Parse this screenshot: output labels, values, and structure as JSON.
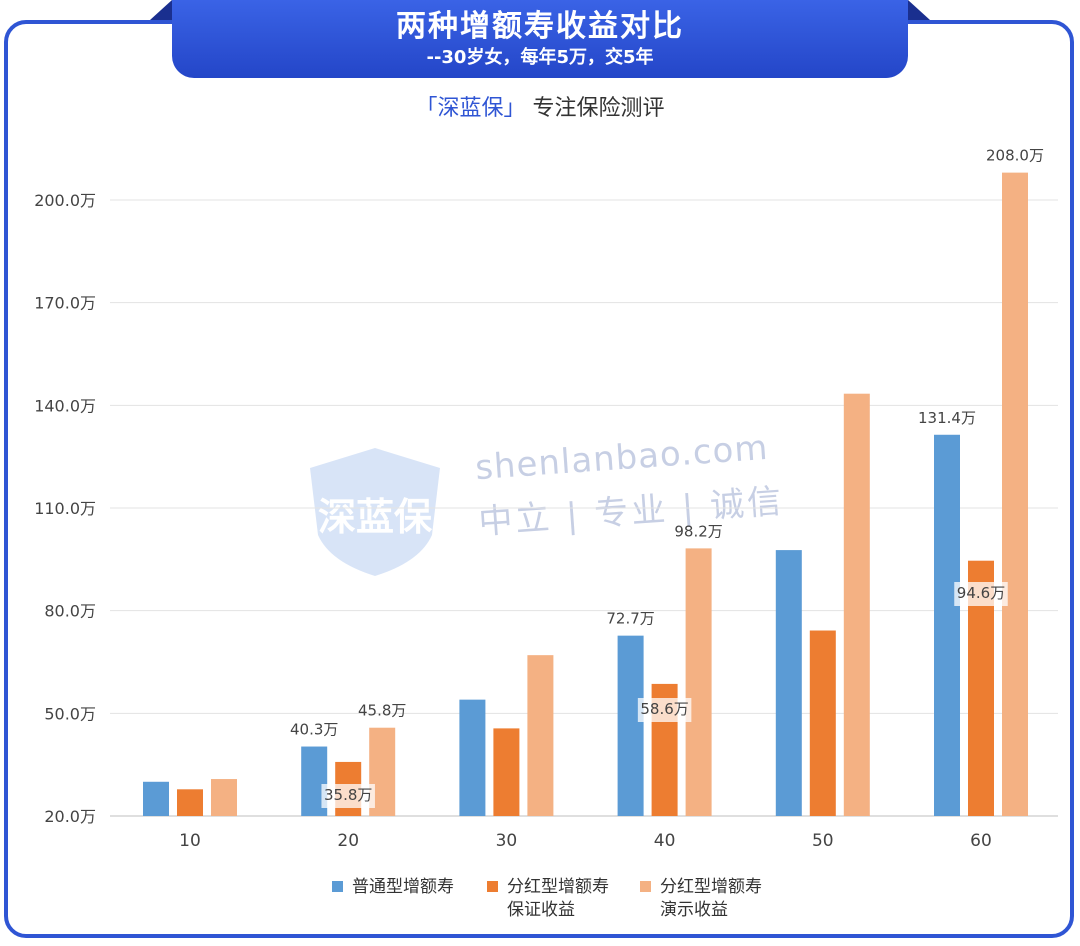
{
  "header": {
    "title": "两种增额寿收益对比",
    "subtitle": "--30岁女，每年5万，交5年"
  },
  "brand": {
    "bracket_open": "「",
    "name": "深蓝保",
    "bracket_close": "」",
    "tagline": "专注保险测评"
  },
  "watermark": {
    "logo_text": "深蓝保",
    "line1": "shenlanbao.com",
    "line2": "中立 | 专业 | 诚信"
  },
  "colors": {
    "frame": "#2f55d4",
    "series1": "#5b9bd5",
    "series2": "#ed7d31",
    "series3": "#f4b183"
  },
  "chart_data": {
    "type": "bar",
    "categories": [
      "10",
      "20",
      "30",
      "40",
      "50",
      "60"
    ],
    "series": [
      {
        "name": "普通型增额寿",
        "values": [
          30.0,
          40.3,
          54.0,
          72.7,
          97.7,
          131.4
        ]
      },
      {
        "name": "分红型增额寿\n保证收益",
        "values": [
          27.8,
          35.8,
          45.6,
          58.6,
          74.2,
          94.6
        ]
      },
      {
        "name": "分红型增额寿\n演示收益",
        "values": [
          30.8,
          45.8,
          67.0,
          98.2,
          143.4,
          208.0
        ]
      }
    ],
    "data_labels": [
      {
        "series": 0,
        "index": 1,
        "text": "40.3万"
      },
      {
        "series": 1,
        "index": 1,
        "text": "35.8万"
      },
      {
        "series": 2,
        "index": 1,
        "text": "45.8万"
      },
      {
        "series": 0,
        "index": 3,
        "text": "72.7万"
      },
      {
        "series": 1,
        "index": 3,
        "text": "58.6万"
      },
      {
        "series": 2,
        "index": 3,
        "text": "98.2万"
      },
      {
        "series": 0,
        "index": 5,
        "text": "131.4万"
      },
      {
        "series": 1,
        "index": 5,
        "text": "94.6万"
      },
      {
        "series": 2,
        "index": 5,
        "text": "208.0万"
      }
    ],
    "y_ticks": [
      "20.0万",
      "50.0万",
      "80.0万",
      "110.0万",
      "140.0万",
      "170.0万",
      "200.0万"
    ],
    "y_tick_values": [
      20,
      50,
      80,
      110,
      140,
      170,
      200
    ],
    "ylim": [
      20,
      200
    ],
    "grid": true,
    "legend_position": "bottom"
  }
}
